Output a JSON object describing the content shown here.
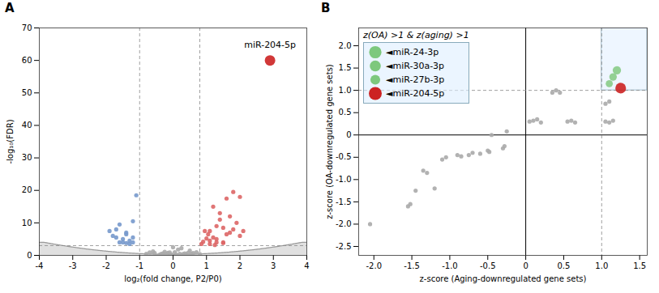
{
  "chart_data": [
    {
      "type": "scatter",
      "title": "A",
      "xlabel": "log₂(fold change, P2/P0)",
      "ylabel": "-log₁₀(FDR)",
      "xlim": [
        -4,
        4
      ],
      "ylim": [
        0,
        70
      ],
      "xticks": [
        -4,
        -3,
        -2,
        -1,
        0,
        1,
        2,
        3,
        4
      ],
      "yticks": [
        0,
        10,
        20,
        30,
        40,
        50,
        60,
        70
      ],
      "series": [
        {
          "color": "#aaaaaa",
          "values": [
            [
              -0.05,
              0.3
            ],
            [
              0.1,
              0.2
            ],
            [
              0.2,
              0.5
            ],
            [
              -0.15,
              0.8
            ],
            [
              0.05,
              1.0
            ],
            [
              0.3,
              0.4
            ],
            [
              -0.3,
              0.6
            ],
            [
              0.4,
              0.3
            ],
            [
              -0.4,
              0.2
            ],
            [
              0.6,
              0.7
            ],
            [
              -0.6,
              1.2
            ],
            [
              0.5,
              1.5
            ],
            [
              -0.2,
              0.4
            ],
            [
              0.15,
              1.8
            ],
            [
              -0.1,
              0.9
            ],
            [
              0.25,
              2.2
            ],
            [
              -0.25,
              1.1
            ],
            [
              0.35,
              0.6
            ],
            [
              -0.35,
              0.5
            ],
            [
              0.0,
              2.5
            ],
            [
              0.45,
              0.8
            ],
            [
              0.55,
              0.5
            ],
            [
              -0.55,
              0.7
            ],
            [
              0.7,
              1.0
            ],
            [
              -0.7,
              0.9
            ],
            [
              0.8,
              0.4
            ],
            [
              -0.8,
              0.5
            ]
          ]
        },
        {
          "color": "#7799cc",
          "values": [
            [
              -1.2,
              5.5
            ],
            [
              -1.4,
              7.0
            ],
            [
              -1.6,
              9.5
            ],
            [
              -1.8,
              6.0
            ],
            [
              -1.3,
              4.5
            ],
            [
              -1.5,
              5.0
            ],
            [
              -1.7,
              8.0
            ],
            [
              -1.2,
              10.5
            ],
            [
              -1.4,
              6.5
            ],
            [
              -1.6,
              4.0
            ],
            [
              -1.9,
              7.5
            ],
            [
              -1.1,
              18.5
            ],
            [
              -1.3,
              3.5
            ],
            [
              -1.5,
              4.0
            ],
            [
              -1.7,
              5.5
            ],
            [
              -1.2,
              4.0
            ],
            [
              -1.4,
              3.8
            ]
          ]
        },
        {
          "color": "#dd6666",
          "values": [
            [
              1.1,
              7.5
            ],
            [
              1.3,
              9.0
            ],
            [
              1.5,
              8.5
            ],
            [
              1.7,
              7.0
            ],
            [
              1.9,
              10.0
            ],
            [
              1.2,
              5.5
            ],
            [
              1.6,
              6.5
            ],
            [
              1.4,
              11.0
            ],
            [
              1.8,
              8.0
            ],
            [
              2.0,
              6.0
            ],
            [
              1.1,
              4.5
            ],
            [
              1.3,
              5.0
            ],
            [
              1.5,
              4.0
            ],
            [
              1.7,
              12.0
            ],
            [
              2.1,
              7.5
            ],
            [
              1.2,
              15.0
            ],
            [
              1.6,
              17.5
            ],
            [
              1.4,
              13.0
            ],
            [
              1.8,
              19.5
            ],
            [
              2.0,
              18.0
            ],
            [
              1.1,
              3.5
            ],
            [
              1.3,
              4.0
            ],
            [
              1.5,
              3.8
            ],
            [
              1.0,
              5.2
            ],
            [
              0.9,
              4.2
            ],
            [
              0.85,
              3.5
            ],
            [
              1.05,
              6.5
            ],
            [
              1.25,
              3.2
            ],
            [
              0.95,
              7.5
            ]
          ]
        },
        {
          "color": "#cc2222",
          "marker": "large",
          "values": [
            [
              2.9,
              60.0
            ]
          ]
        }
      ],
      "threshold_curve": {
        "a": 0.3,
        "b": 0.25,
        "max": 4,
        "color": "#999999"
      },
      "rules": [
        {
          "axis": "x",
          "value": -1.0,
          "line_style": "dashed"
        },
        {
          "axis": "x",
          "value": 0.8,
          "line_style": "dashed"
        },
        {
          "axis": "y",
          "value": 3.0,
          "line_style": "dashed"
        }
      ],
      "annotations": [
        {
          "text": "miR-204-5p",
          "x": 2.9,
          "y": 60.0
        }
      ]
    },
    {
      "type": "scatter",
      "title": "B",
      "xlabel": "z-score (Aging-downregulated gene sets)",
      "ylabel": "z-score (OA-downregulated gene sets)",
      "xlim": [
        -2.2,
        1.6
      ],
      "ylim": [
        -2.7,
        2.4
      ],
      "xticks": [
        {
          "value": -2,
          "label": "-2.0"
        },
        -1.5,
        {
          "value": -1,
          "label": "-1.0"
        },
        -0.5,
        0,
        0.5,
        {
          "value": 1,
          "label": "1.0"
        },
        1.5
      ],
      "yticks": [
        -2.5,
        {
          "value": -2,
          "label": "-2.0"
        },
        -1.5,
        {
          "value": -1,
          "label": "-1.0"
        },
        -0.5,
        0,
        0.5,
        {
          "value": 1,
          "label": "1.0"
        },
        1.5,
        {
          "value": 2,
          "label": "2.0"
        }
      ],
      "series": [
        {
          "color": "#aaaaaa",
          "values": [
            [
              -2.05,
              -2.0
            ],
            [
              -1.55,
              -1.6
            ],
            [
              -1.52,
              -1.55
            ],
            [
              -1.45,
              -1.25
            ],
            [
              -1.35,
              -0.8
            ],
            [
              -1.3,
              -0.85
            ],
            [
              -1.2,
              -1.2
            ],
            [
              -1.1,
              -0.55
            ],
            [
              -1.05,
              -0.5
            ],
            [
              -0.9,
              -0.45
            ],
            [
              -0.85,
              -0.48
            ],
            [
              -0.75,
              -0.45
            ],
            [
              -0.7,
              -0.4
            ],
            [
              -0.6,
              -0.42
            ],
            [
              -0.5,
              -0.35
            ],
            [
              -0.48,
              -0.38
            ],
            [
              -0.45,
              0.0
            ],
            [
              -0.3,
              -0.3
            ],
            [
              -0.28,
              -0.25
            ],
            [
              -0.25,
              0.08
            ],
            [
              0.05,
              0.3
            ],
            [
              0.1,
              0.32
            ],
            [
              0.15,
              0.35
            ],
            [
              0.2,
              0.28
            ],
            [
              0.35,
              0.95
            ],
            [
              0.4,
              1.0
            ],
            [
              0.45,
              0.95
            ],
            [
              0.55,
              0.3
            ],
            [
              0.6,
              0.32
            ],
            [
              0.65,
              0.28
            ],
            [
              1.05,
              0.3
            ],
            [
              1.1,
              0.28
            ],
            [
              1.15,
              0.32
            ],
            [
              1.05,
              0.7
            ],
            [
              1.1,
              0.75
            ]
          ]
        },
        {
          "color": "#88cc88",
          "values": [
            [
              1.2,
              1.45
            ],
            [
              1.15,
              1.3
            ],
            [
              1.1,
              1.15
            ]
          ],
          "sizes": [
            55,
            45,
            40
          ]
        },
        {
          "color": "#cc2222",
          "values": [
            [
              1.25,
              1.05
            ]
          ],
          "sizes": [
            90
          ]
        }
      ],
      "rules": [
        {
          "axis": "x",
          "value": 0.0,
          "line_style": "solid"
        },
        {
          "axis": "y",
          "value": 0.0,
          "line_style": "solid"
        },
        {
          "axis": "x",
          "value": 1.0,
          "line_style": "dashed"
        },
        {
          "axis": "y",
          "value": 1.0,
          "line_style": "dashed"
        }
      ],
      "highlight": {
        "x1": 1.0,
        "y1": 1.0,
        "x2": 1.6,
        "y2": 2.4,
        "color": "#ddeeff"
      },
      "legend": "upper left",
      "legend_title": "z(OA) >1 & z(aging) >1",
      "legend_items": [
        {
          "label": "◄miR-24-3p",
          "size": 120,
          "color": "#7dc87d"
        },
        {
          "label": "◄miR-30a-3p",
          "size": 95,
          "color": "#7dc87d"
        },
        {
          "label": "◄miR-27b-3p",
          "size": 75,
          "color": "#7dc87d"
        },
        {
          "label": "◄miR-204-5p",
          "size": 160,
          "color": "#cc2222"
        }
      ]
    }
  ]
}
